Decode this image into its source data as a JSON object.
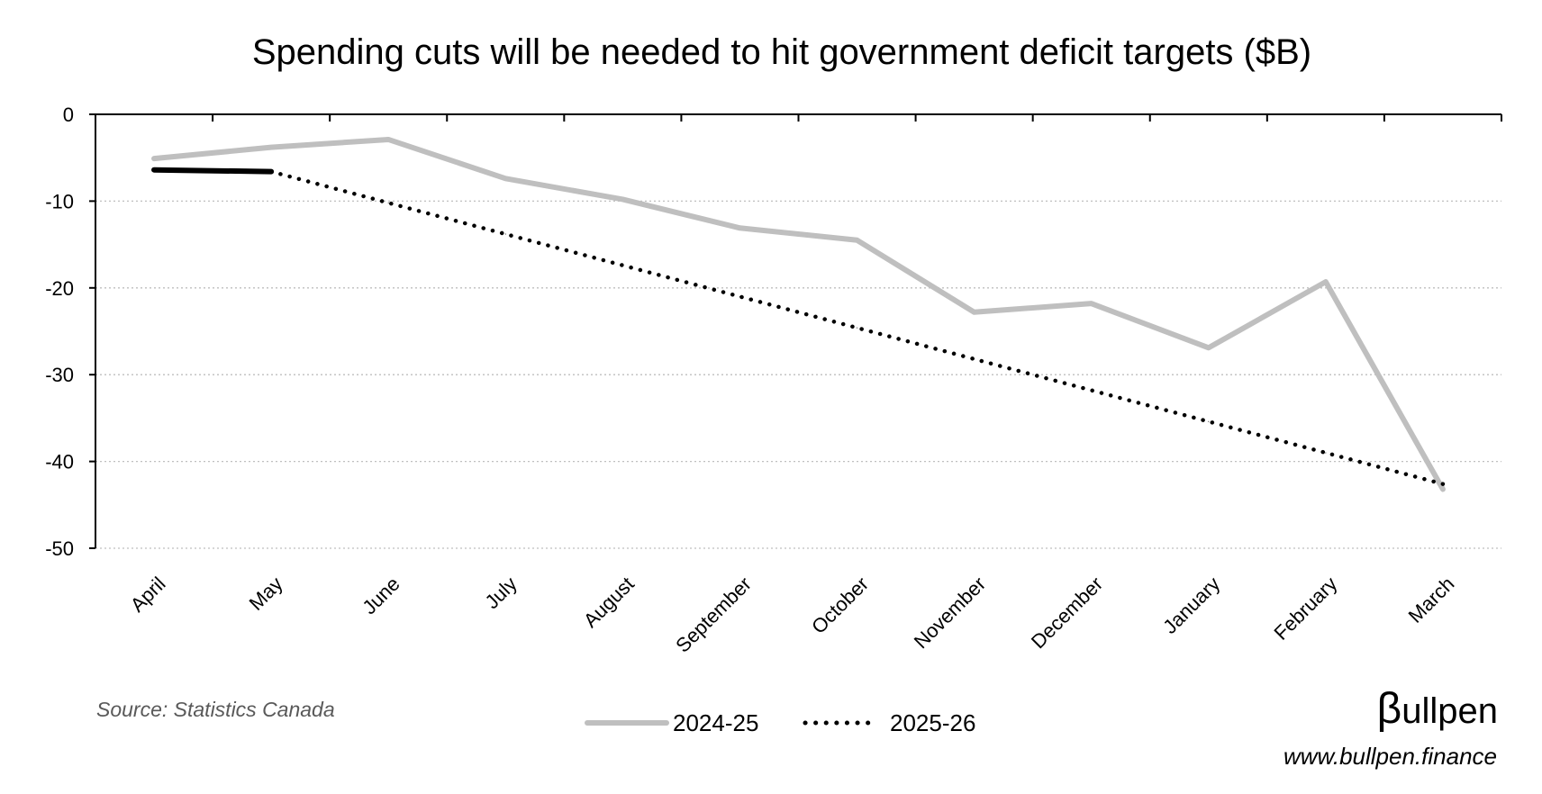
{
  "chart_data": {
    "type": "line",
    "title": "Spending cuts will be needed to hit government deficit targets ($B)",
    "categories": [
      "April",
      "May",
      "June",
      "July",
      "August",
      "September",
      "October",
      "November",
      "December",
      "January",
      "February",
      "March"
    ],
    "ylim": [
      -50,
      0
    ],
    "yticks": [
      0,
      -10,
      -20,
      -30,
      -40,
      -50
    ],
    "grid": true,
    "series": [
      {
        "name": "2024-25",
        "style": "solid",
        "color": "#BFBFBF",
        "values": [
          -5.1,
          -3.8,
          -2.9,
          -7.4,
          -9.8,
          -13.1,
          -14.5,
          -22.8,
          -21.8,
          -26.9,
          -19.3,
          -43.2
        ]
      },
      {
        "name": "2025-26",
        "style": "dotted",
        "color": "#000000",
        "actual_count": 2,
        "values": [
          -6.4,
          -6.6,
          -10.2,
          -13.8,
          -17.4,
          -21.0,
          -24.6,
          -28.2,
          -31.8,
          -35.4,
          -39.0,
          -42.6
        ]
      }
    ]
  },
  "source": "Source: Statistics Canada",
  "brand": {
    "logo_mark": "β",
    "logo_text": "ullpen",
    "url": "www.bullpen.finance"
  }
}
